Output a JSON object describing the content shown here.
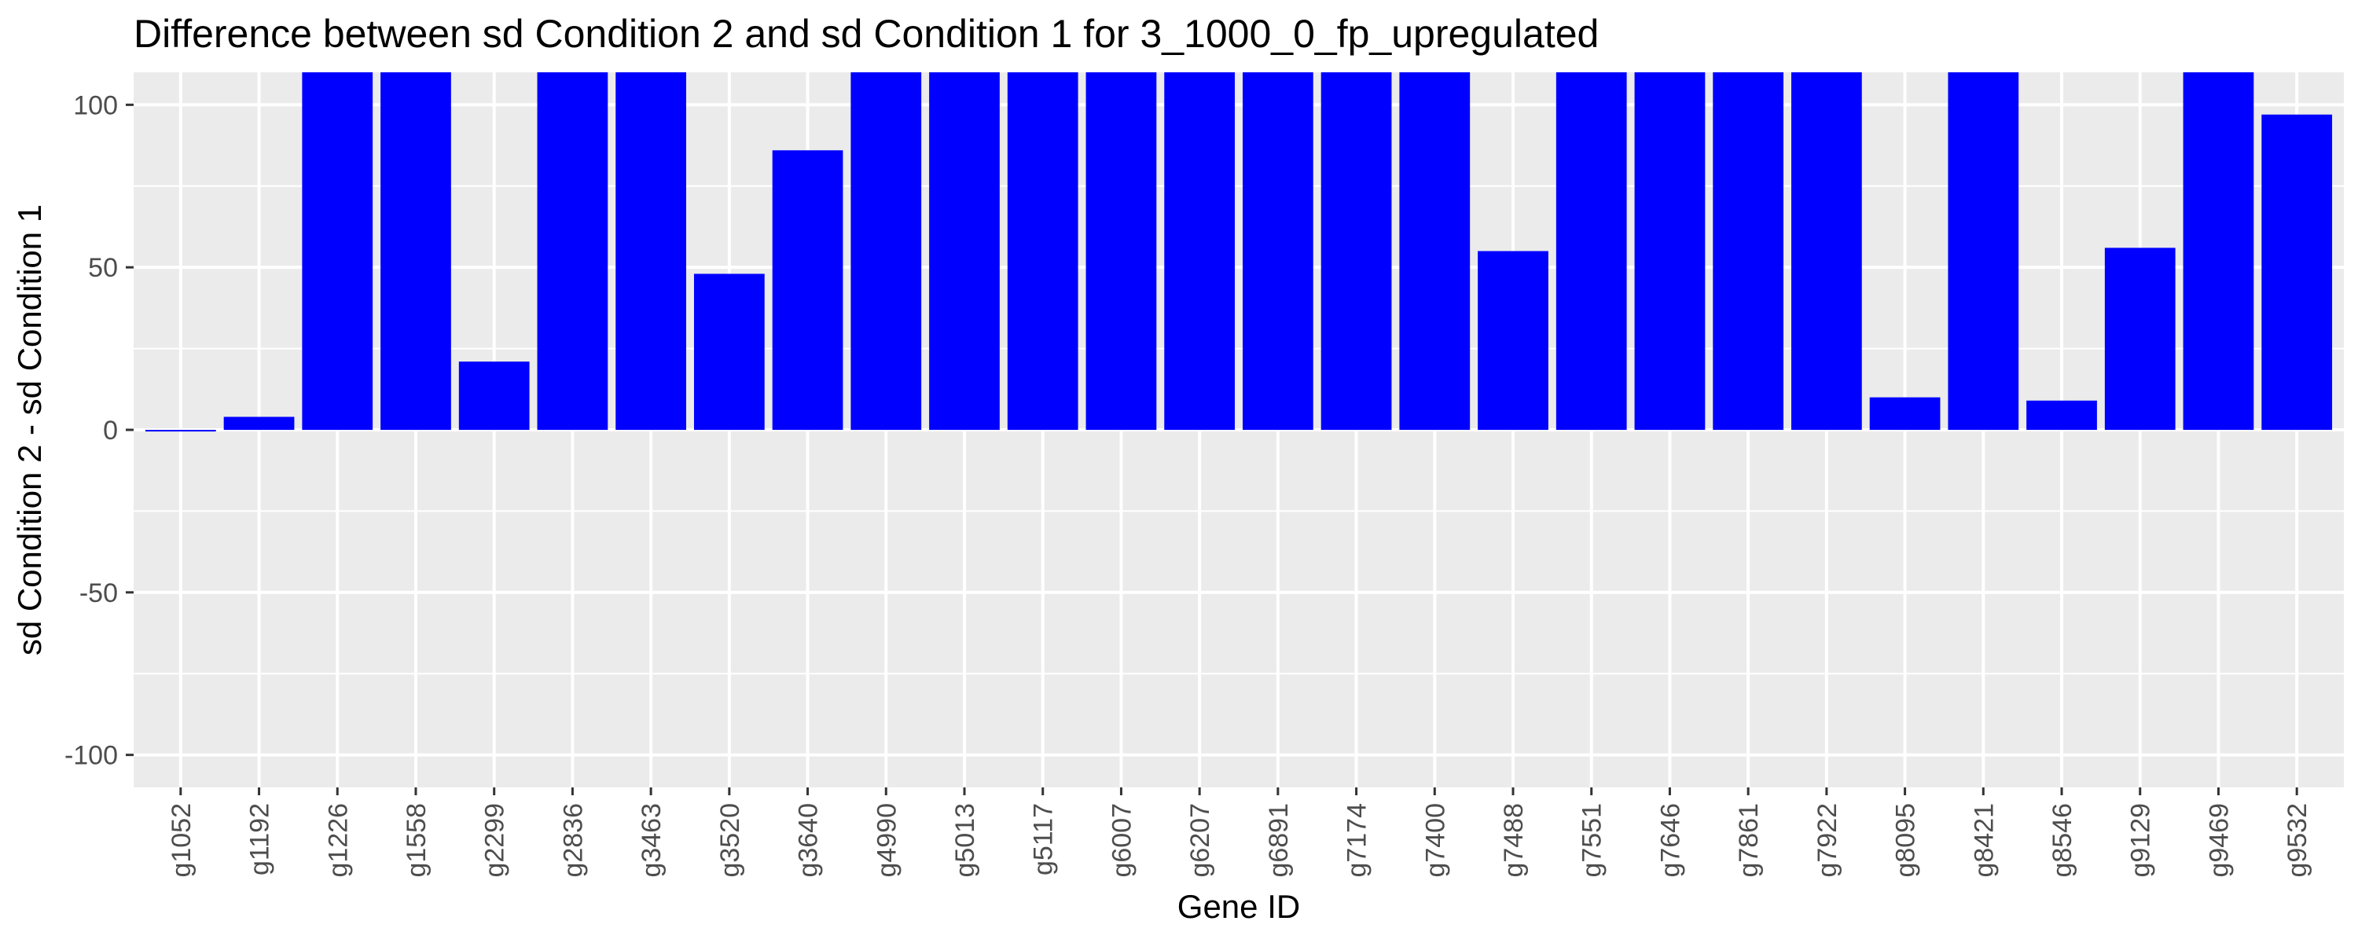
{
  "chart_data": {
    "type": "bar",
    "title": "Difference between sd Condition 2 and sd Condition 1 for 3_1000_0_fp_upregulated",
    "xlabel": "Gene ID",
    "ylabel": "sd Condition 2 - sd Condition 1",
    "ylim": [
      -110,
      110
    ],
    "yticks": [
      -100,
      -50,
      0,
      50,
      100
    ],
    "grid": true,
    "bar_color": "#0000FF",
    "panel_background": "#EBEBEB",
    "grid_color": "#FFFFFF",
    "categories": [
      "g1052",
      "g1192",
      "g1226",
      "g1558",
      "g2299",
      "g2836",
      "g3463",
      "g3520",
      "g3640",
      "g4990",
      "g5013",
      "g5117",
      "g6007",
      "g6207",
      "g6891",
      "g7174",
      "g7400",
      "g7488",
      "g7551",
      "g7646",
      "g7861",
      "g7922",
      "g8095",
      "g8421",
      "g8546",
      "g9129",
      "g9469",
      "g9532"
    ],
    "values": [
      -0.5,
      4,
      110,
      110,
      21,
      110,
      110,
      48,
      86,
      110,
      110,
      110,
      110,
      110,
      110,
      110,
      110,
      55,
      110,
      110,
      110,
      110,
      10,
      110,
      9,
      56,
      110,
      97
    ]
  }
}
